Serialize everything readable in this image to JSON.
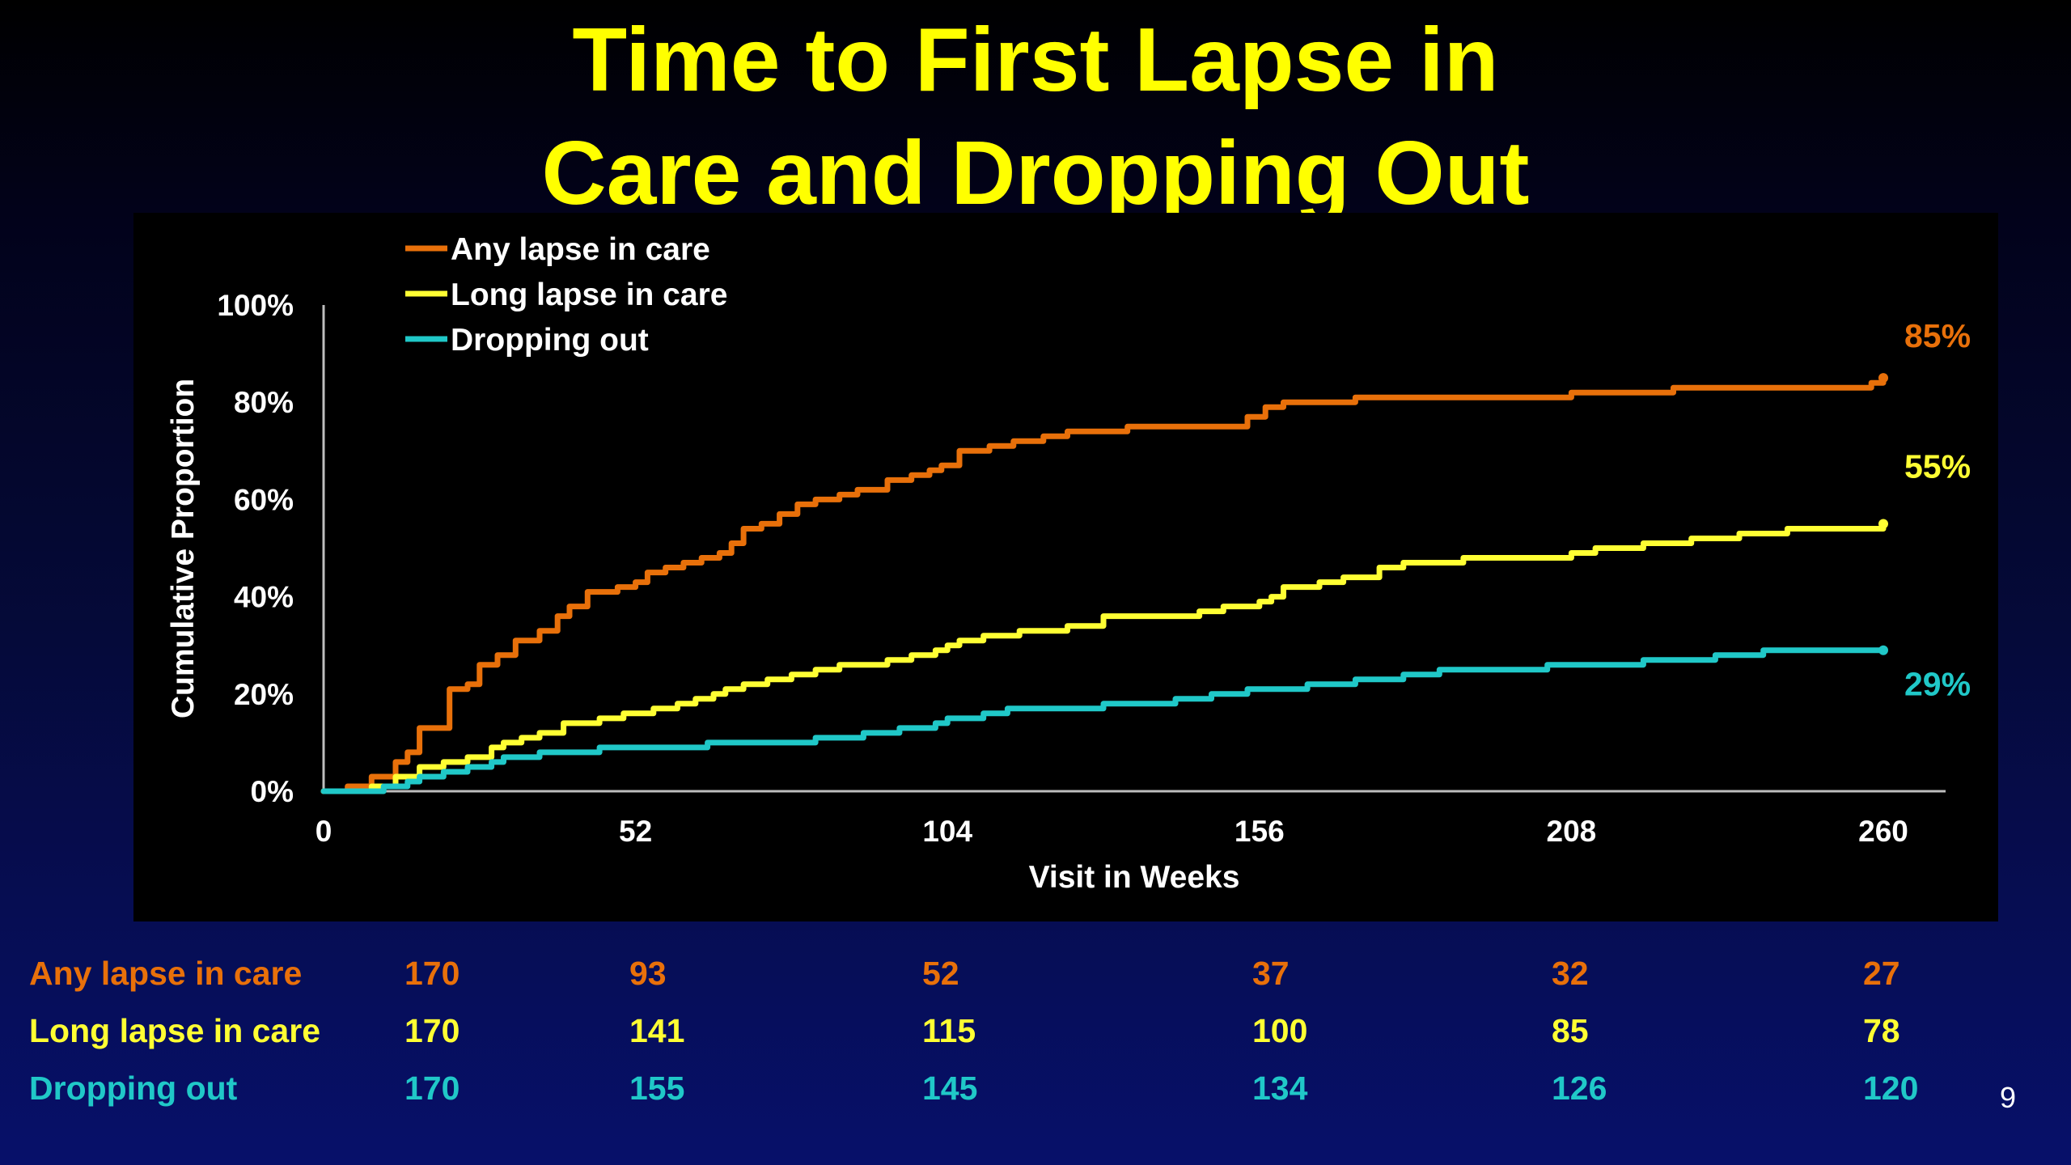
{
  "slide": {
    "title_line1": "Time to First Lapse in",
    "title_line2": "Care and Dropping Out",
    "page_number": "9"
  },
  "colors": {
    "title": "#ffff00",
    "any_lapse": "#e8700a",
    "long_lapse": "#ffff33",
    "dropping_out": "#20c8c8"
  },
  "chart_data": {
    "type": "line",
    "step": true,
    "xlabel": "Visit in Weeks",
    "ylabel": "Cumulative Proportion",
    "xlim": [
      0,
      260
    ],
    "ylim": [
      0,
      100
    ],
    "x_ticks": [
      "0",
      "52",
      "104",
      "156",
      "208",
      "260"
    ],
    "y_ticks": [
      "0%",
      "20%",
      "40%",
      "60%",
      "80%",
      "100%"
    ],
    "grid": false,
    "legend_position": "top-left",
    "series": [
      {
        "name": "Any lapse in care",
        "color": "#e8700a",
        "end_label": "85%",
        "points": [
          [
            0,
            0
          ],
          [
            4,
            1
          ],
          [
            8,
            3
          ],
          [
            12,
            6
          ],
          [
            14,
            8
          ],
          [
            16,
            13
          ],
          [
            21,
            21
          ],
          [
            24,
            22
          ],
          [
            26,
            26
          ],
          [
            29,
            28
          ],
          [
            32,
            31
          ],
          [
            36,
            33
          ],
          [
            39,
            36
          ],
          [
            41,
            38
          ],
          [
            44,
            41
          ],
          [
            48,
            41
          ],
          [
            49,
            42
          ],
          [
            52,
            43
          ],
          [
            54,
            45
          ],
          [
            57,
            46
          ],
          [
            60,
            47
          ],
          [
            63,
            48
          ],
          [
            66,
            49
          ],
          [
            68,
            51
          ],
          [
            70,
            54
          ],
          [
            73,
            55
          ],
          [
            76,
            57
          ],
          [
            79,
            59
          ],
          [
            82,
            60
          ],
          [
            86,
            61
          ],
          [
            89,
            62
          ],
          [
            94,
            64
          ],
          [
            98,
            65
          ],
          [
            101,
            66
          ],
          [
            103,
            67
          ],
          [
            106,
            70
          ],
          [
            111,
            71
          ],
          [
            115,
            72
          ],
          [
            120,
            73
          ],
          [
            124,
            74
          ],
          [
            130,
            74
          ],
          [
            134,
            75
          ],
          [
            150,
            75
          ],
          [
            154,
            77
          ],
          [
            157,
            79
          ],
          [
            160,
            80
          ],
          [
            166,
            80
          ],
          [
            172,
            81
          ],
          [
            186,
            81
          ],
          [
            200,
            81
          ],
          [
            208,
            82
          ],
          [
            214,
            82
          ],
          [
            220,
            82
          ],
          [
            225,
            83
          ],
          [
            240,
            83
          ],
          [
            250,
            83
          ],
          [
            254,
            83
          ],
          [
            258,
            84
          ],
          [
            260,
            85
          ]
        ]
      },
      {
        "name": "Long lapse in care",
        "color": "#ffff33",
        "end_label": "55%",
        "points": [
          [
            0,
            0
          ],
          [
            8,
            1
          ],
          [
            12,
            3
          ],
          [
            16,
            5
          ],
          [
            20,
            6
          ],
          [
            24,
            7
          ],
          [
            28,
            9
          ],
          [
            30,
            10
          ],
          [
            33,
            11
          ],
          [
            36,
            12
          ],
          [
            40,
            14
          ],
          [
            46,
            15
          ],
          [
            50,
            16
          ],
          [
            55,
            17
          ],
          [
            59,
            18
          ],
          [
            62,
            19
          ],
          [
            65,
            20
          ],
          [
            67,
            21
          ],
          [
            70,
            22
          ],
          [
            74,
            23
          ],
          [
            78,
            24
          ],
          [
            82,
            25
          ],
          [
            86,
            26
          ],
          [
            90,
            26
          ],
          [
            94,
            27
          ],
          [
            98,
            28
          ],
          [
            102,
            29
          ],
          [
            104,
            30
          ],
          [
            106,
            31
          ],
          [
            110,
            32
          ],
          [
            116,
            33
          ],
          [
            124,
            34
          ],
          [
            130,
            36
          ],
          [
            140,
            36
          ],
          [
            146,
            37
          ],
          [
            150,
            38
          ],
          [
            156,
            39
          ],
          [
            158,
            40
          ],
          [
            160,
            42
          ],
          [
            166,
            43
          ],
          [
            170,
            44
          ],
          [
            176,
            46
          ],
          [
            180,
            47
          ],
          [
            190,
            48
          ],
          [
            200,
            48
          ],
          [
            208,
            49
          ],
          [
            212,
            50
          ],
          [
            216,
            50
          ],
          [
            220,
            51
          ],
          [
            224,
            51
          ],
          [
            228,
            52
          ],
          [
            232,
            52
          ],
          [
            236,
            53
          ],
          [
            240,
            53
          ],
          [
            244,
            54
          ],
          [
            250,
            54
          ],
          [
            260,
            55
          ]
        ]
      },
      {
        "name": "Dropping out",
        "color": "#20c8c8",
        "end_label": "29%",
        "points": [
          [
            0,
            0
          ],
          [
            10,
            1
          ],
          [
            14,
            2
          ],
          [
            16,
            3
          ],
          [
            20,
            4
          ],
          [
            24,
            5
          ],
          [
            28,
            6
          ],
          [
            30,
            7
          ],
          [
            36,
            8
          ],
          [
            42,
            8
          ],
          [
            46,
            9
          ],
          [
            60,
            9
          ],
          [
            64,
            10
          ],
          [
            78,
            10
          ],
          [
            82,
            11
          ],
          [
            90,
            12
          ],
          [
            96,
            13
          ],
          [
            102,
            14
          ],
          [
            104,
            15
          ],
          [
            110,
            16
          ],
          [
            114,
            17
          ],
          [
            124,
            17
          ],
          [
            130,
            18
          ],
          [
            138,
            18
          ],
          [
            142,
            19
          ],
          [
            148,
            20
          ],
          [
            154,
            21
          ],
          [
            160,
            21
          ],
          [
            164,
            22
          ],
          [
            172,
            23
          ],
          [
            180,
            24
          ],
          [
            186,
            25
          ],
          [
            196,
            25
          ],
          [
            204,
            26
          ],
          [
            212,
            26
          ],
          [
            220,
            27
          ],
          [
            228,
            27
          ],
          [
            232,
            28
          ],
          [
            236,
            28
          ],
          [
            240,
            29
          ],
          [
            250,
            29
          ],
          [
            260,
            29
          ]
        ]
      }
    ]
  },
  "risk_table": {
    "rows": [
      {
        "label": "Any lapse in care",
        "color": "#e8700a",
        "values": [
          "170",
          "93",
          "52",
          "37",
          "32",
          "27"
        ]
      },
      {
        "label": "Long lapse in care",
        "color": "#ffff33",
        "values": [
          "170",
          "141",
          "115",
          "100",
          "85",
          "78"
        ]
      },
      {
        "label": "Dropping out",
        "color": "#20c8c8",
        "values": [
          "170",
          "155",
          "145",
          "134",
          "126",
          "120"
        ]
      }
    ]
  }
}
